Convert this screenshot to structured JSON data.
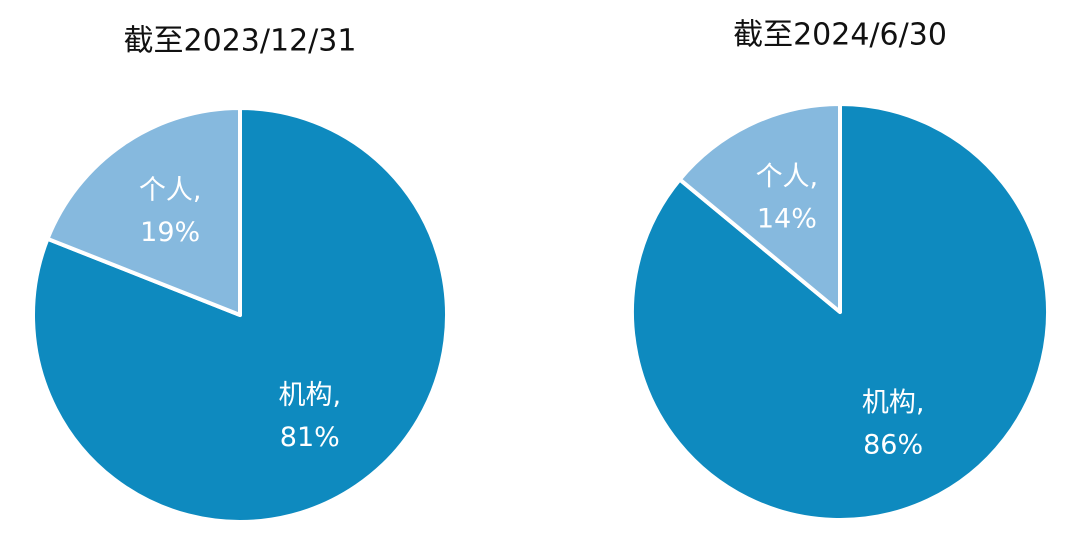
{
  "chart_data": [
    {
      "type": "pie",
      "title": "截至2023/12/31",
      "categories": [
        "机构,",
        "个人,"
      ],
      "values": [
        81,
        19
      ],
      "value_labels": [
        "81%",
        "19%"
      ],
      "colors": [
        "#0e8abf",
        "#86b9de"
      ]
    },
    {
      "type": "pie",
      "title": "截至2024/6/30",
      "categories": [
        "机构,",
        "个人,"
      ],
      "values": [
        86,
        14
      ],
      "value_labels": [
        "86%",
        "14%"
      ],
      "colors": [
        "#0e8abf",
        "#86b9de"
      ]
    }
  ]
}
